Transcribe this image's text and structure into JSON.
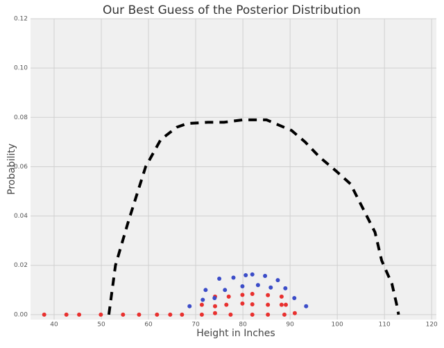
{
  "chart_data": {
    "type": "line",
    "title": "Our Best Guess of the Posterior Distribution",
    "x_label": "Height in Inches",
    "y_label": "Probability",
    "xlim": [
      35,
      121
    ],
    "ylim": [
      -0.002,
      0.12
    ],
    "xticks": [
      40,
      50,
      60,
      70,
      80,
      90,
      100,
      110,
      120
    ],
    "yticks": [
      {
        "value": 0,
        "label": "0.00"
      },
      {
        "value": 0.02,
        "label": "0.02"
      },
      {
        "value": 0.04,
        "label": "0.04"
      },
      {
        "value": 0.06,
        "label": "0.06"
      },
      {
        "value": 0.08,
        "label": "0.08"
      },
      {
        "value": 0.1,
        "label": "0.10"
      },
      {
        "value": 0.12,
        "label": "0.12"
      }
    ],
    "grid": true,
    "series": [
      {
        "type": "line",
        "color": "#000000",
        "dashed": true,
        "x": [
          51.6,
          53,
          55.7,
          59.4,
          62.6,
          66,
          68.2,
          72.6,
          76,
          80,
          85,
          90.3,
          93.2,
          96.2,
          99.9,
          102.8,
          108,
          109.4,
          111.6,
          112.6,
          113
        ],
        "values": [
          0,
          0.02,
          0.0376,
          0.06,
          0.071,
          0.076,
          0.0775,
          0.078,
          0.078,
          0.079,
          0.079,
          0.0747,
          0.07,
          0.064,
          0.058,
          0.053,
          0.0334,
          0.022,
          0.0124,
          0.004,
          0
        ]
      },
      {
        "type": "scatter",
        "color": "#e8302e",
        "x": [
          37.9,
          42.6,
          45.3,
          49.9,
          54.6,
          58,
          61.8,
          64.6,
          67.1,
          71.3,
          71.3,
          74.1,
          74.1,
          74.1,
          76.5,
          77,
          77.4,
          79.9,
          79.9,
          82,
          82,
          82,
          85.3,
          85.3,
          85.3,
          88.2,
          88.2,
          89.1,
          88.8,
          91
        ],
        "values": [
          0,
          0,
          0,
          0,
          0,
          0,
          0,
          0,
          0,
          0.004,
          0,
          0.0073,
          0.0034,
          0.0006,
          0.004,
          0.0073,
          0,
          0.008,
          0.0045,
          0.0084,
          0.0042,
          0,
          0.0079,
          0.004,
          0,
          0.0073,
          0.004,
          0.004,
          0,
          0.0006
        ]
      },
      {
        "type": "scatter",
        "color": "#3b4cc8",
        "x": [
          68.7,
          71.5,
          72.1,
          74,
          75,
          76.2,
          78,
          79.9,
          80.6,
          82,
          83.2,
          84.7,
          85.9,
          87.4,
          89,
          90.9,
          93.4
        ],
        "values": [
          0.0034,
          0.006,
          0.01,
          0.0067,
          0.0146,
          0.01,
          0.015,
          0.0115,
          0.016,
          0.0163,
          0.012,
          0.0157,
          0.011,
          0.014,
          0.0107,
          0.0067,
          0.0034
        ]
      }
    ]
  }
}
